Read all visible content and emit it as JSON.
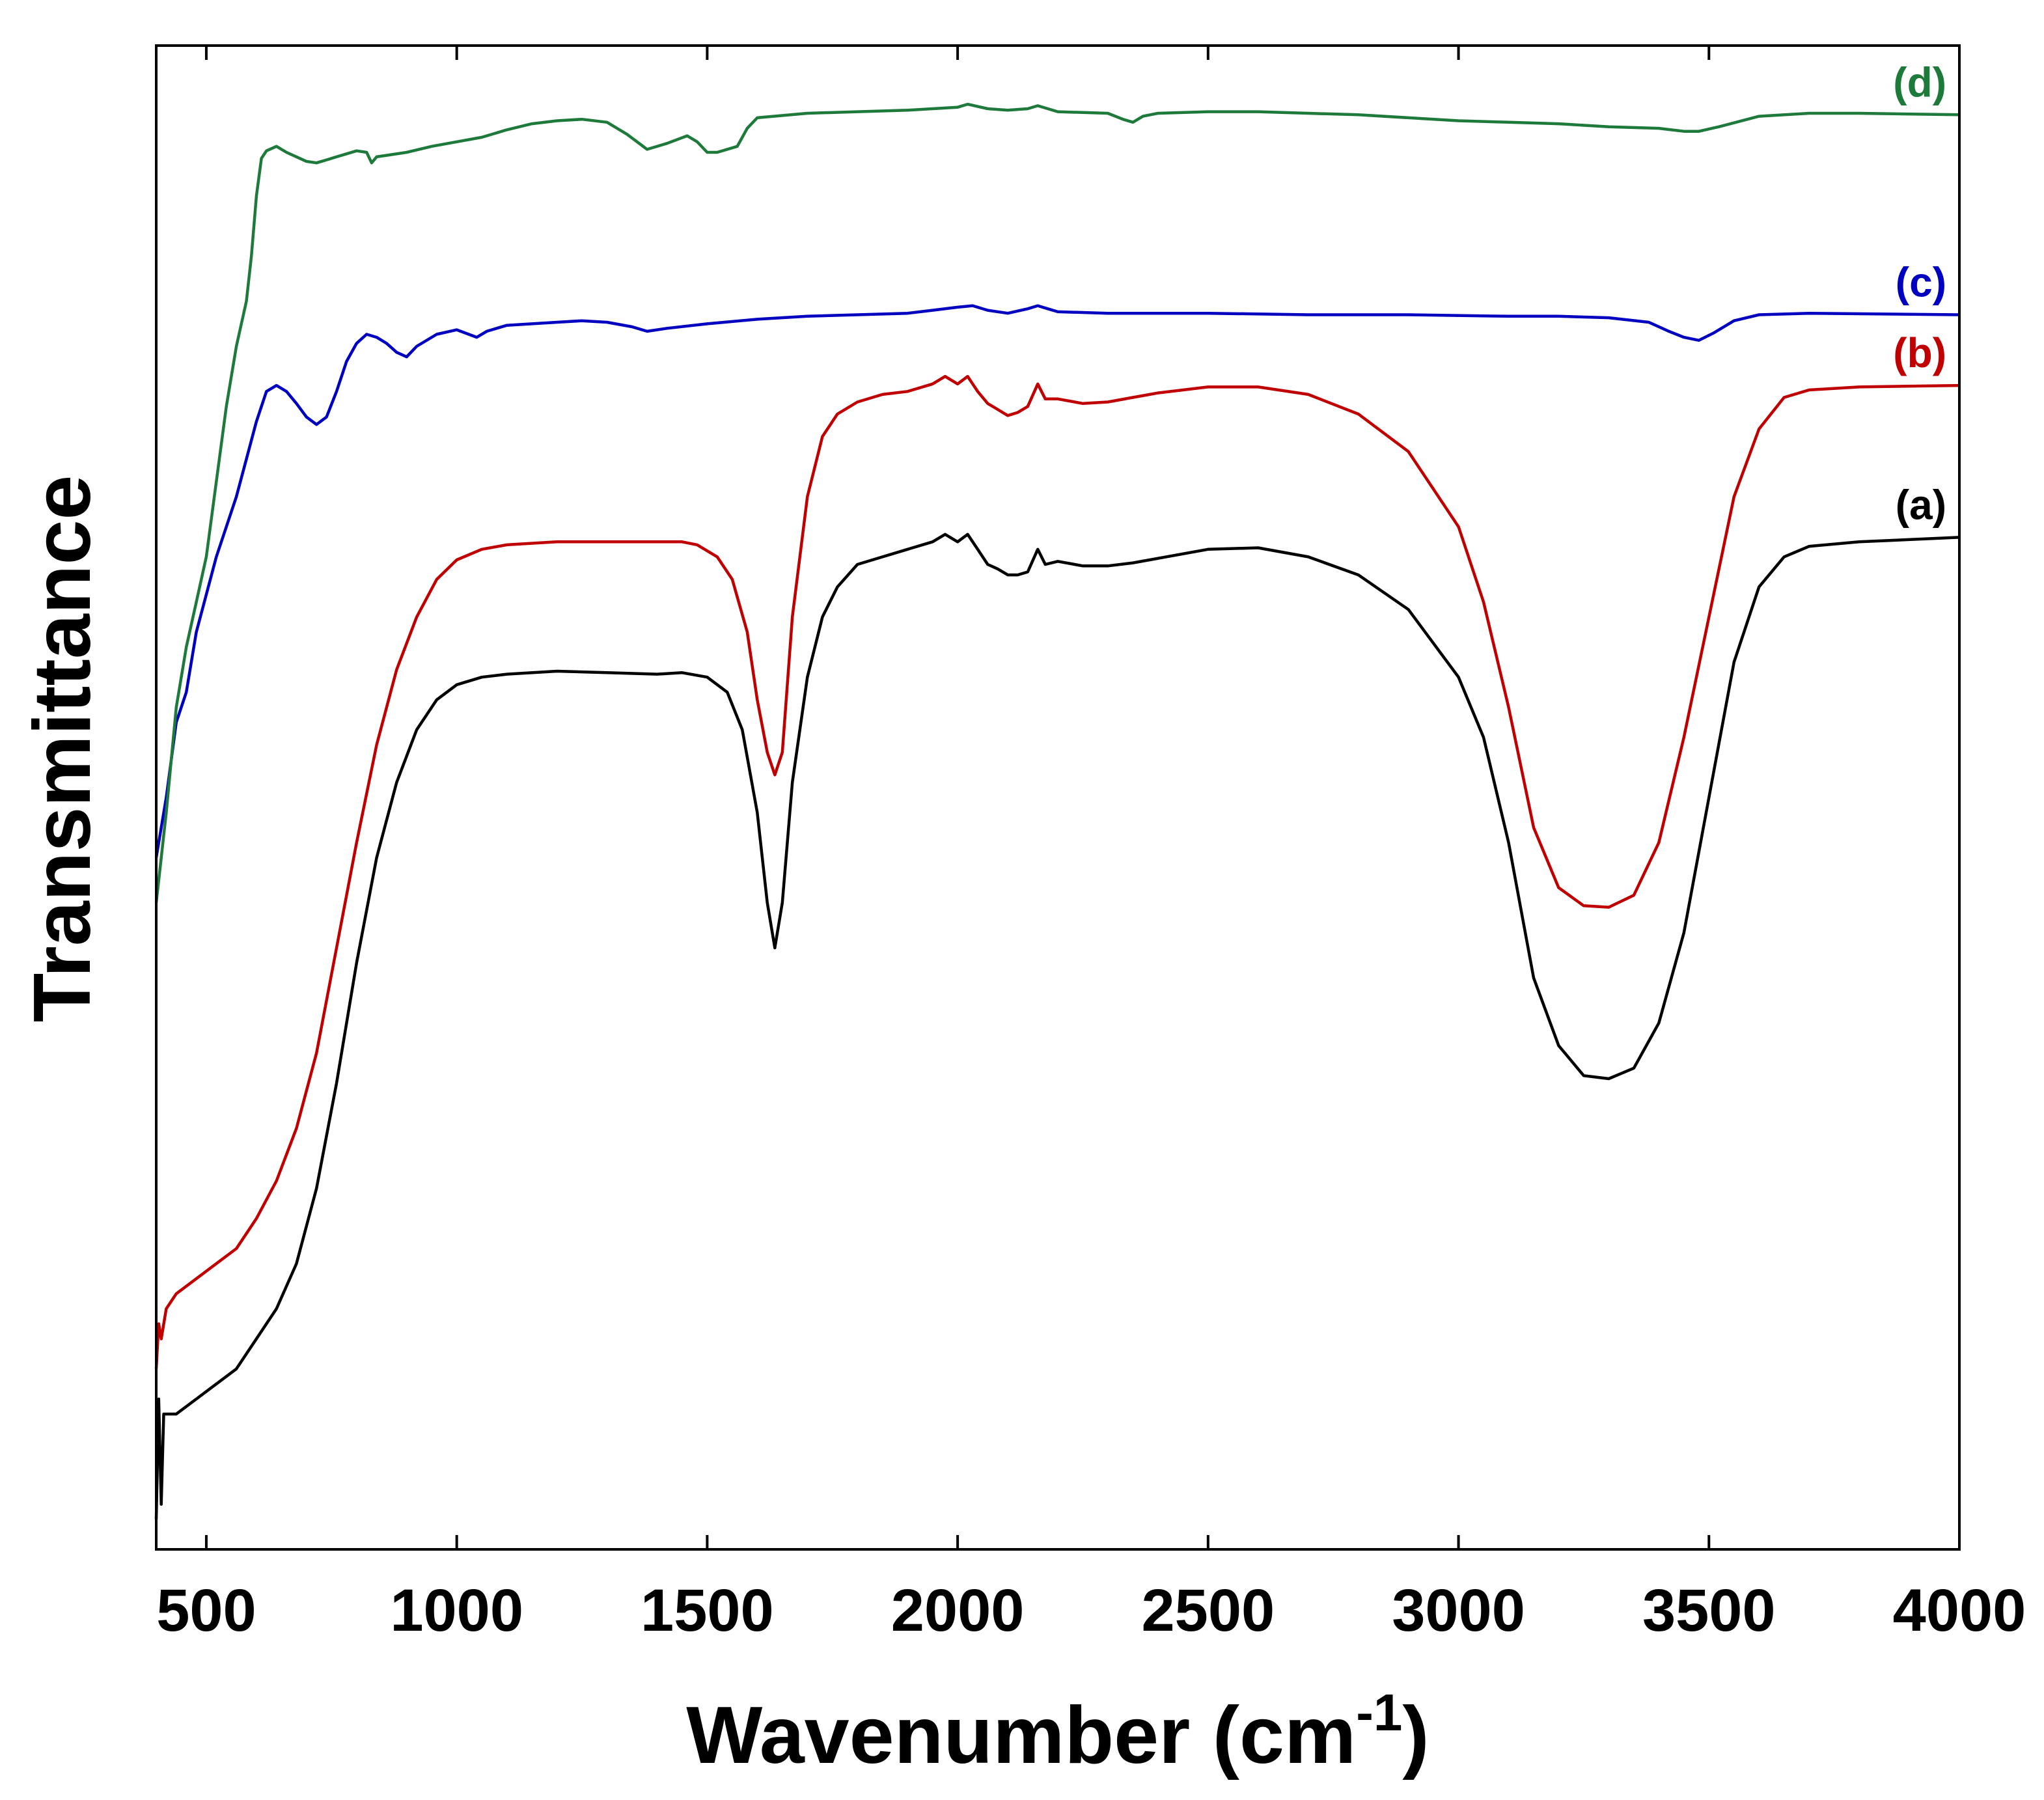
{
  "chart_data": {
    "type": "line",
    "title": "",
    "xlabel": "Wavenumber (cm",
    "xlabel_superscript": "-1",
    "xlabel_close": ")",
    "ylabel": "Transmittance",
    "xlim": [
      400,
      4000
    ],
    "ylim": [
      0,
      100
    ],
    "xticks": [
      500,
      1000,
      1500,
      2000,
      2500,
      3000,
      3500,
      4000
    ],
    "y_tick_labels": false,
    "grid": false,
    "legend": "inline labels at right end of each curve",
    "series": [
      {
        "name": "(a)",
        "color": "#000000",
        "points": [
          [
            400,
            2
          ],
          [
            405,
            10
          ],
          [
            410,
            3
          ],
          [
            415,
            9
          ],
          [
            420,
            9
          ],
          [
            440,
            9
          ],
          [
            480,
            10
          ],
          [
            520,
            11
          ],
          [
            560,
            12
          ],
          [
            600,
            14
          ],
          [
            640,
            16
          ],
          [
            680,
            19
          ],
          [
            720,
            24
          ],
          [
            760,
            31
          ],
          [
            800,
            39
          ],
          [
            840,
            46
          ],
          [
            880,
            51
          ],
          [
            920,
            54.5
          ],
          [
            960,
            56.5
          ],
          [
            1000,
            57.5
          ],
          [
            1050,
            58
          ],
          [
            1100,
            58.2
          ],
          [
            1200,
            58.4
          ],
          [
            1300,
            58.3
          ],
          [
            1400,
            58.2
          ],
          [
            1450,
            58.3
          ],
          [
            1500,
            58
          ],
          [
            1540,
            57
          ],
          [
            1570,
            54.5
          ],
          [
            1600,
            49
          ],
          [
            1620,
            43
          ],
          [
            1635,
            40
          ],
          [
            1650,
            43
          ],
          [
            1670,
            51
          ],
          [
            1700,
            58
          ],
          [
            1730,
            62
          ],
          [
            1760,
            64
          ],
          [
            1800,
            65.5
          ],
          [
            1850,
            66
          ],
          [
            1900,
            66.5
          ],
          [
            1950,
            67
          ],
          [
            1975,
            67.5
          ],
          [
            2000,
            67
          ],
          [
            2020,
            67.5
          ],
          [
            2040,
            66.5
          ],
          [
            2060,
            65.5
          ],
          [
            2080,
            65.2
          ],
          [
            2100,
            64.8
          ],
          [
            2120,
            64.8
          ],
          [
            2140,
            65
          ],
          [
            2160,
            66.5
          ],
          [
            2175,
            65.5
          ],
          [
            2200,
            65.7
          ],
          [
            2250,
            65.4
          ],
          [
            2300,
            65.4
          ],
          [
            2350,
            65.6
          ],
          [
            2400,
            65.9
          ],
          [
            2500,
            66.5
          ],
          [
            2600,
            66.6
          ],
          [
            2700,
            66
          ],
          [
            2800,
            64.8
          ],
          [
            2900,
            62.5
          ],
          [
            3000,
            58
          ],
          [
            3050,
            54
          ],
          [
            3100,
            47
          ],
          [
            3150,
            38
          ],
          [
            3200,
            33.5
          ],
          [
            3250,
            31.5
          ],
          [
            3300,
            31.3
          ],
          [
            3350,
            32
          ],
          [
            3400,
            35
          ],
          [
            3450,
            41
          ],
          [
            3500,
            50
          ],
          [
            3550,
            59
          ],
          [
            3600,
            64
          ],
          [
            3650,
            66
          ],
          [
            3700,
            66.7
          ],
          [
            3800,
            67
          ],
          [
            4000,
            67.3
          ]
        ]
      },
      {
        "name": "(b)",
        "color": "#C00000",
        "points": [
          [
            400,
            12
          ],
          [
            405,
            15
          ],
          [
            410,
            14
          ],
          [
            420,
            16
          ],
          [
            440,
            17
          ],
          [
            480,
            18
          ],
          [
            520,
            19
          ],
          [
            560,
            20
          ],
          [
            600,
            22
          ],
          [
            640,
            24.5
          ],
          [
            680,
            28
          ],
          [
            720,
            33
          ],
          [
            760,
            40
          ],
          [
            800,
            47
          ],
          [
            840,
            53.5
          ],
          [
            880,
            58.5
          ],
          [
            920,
            62
          ],
          [
            960,
            64.5
          ],
          [
            1000,
            65.8
          ],
          [
            1050,
            66.5
          ],
          [
            1100,
            66.8
          ],
          [
            1200,
            67
          ],
          [
            1300,
            67
          ],
          [
            1400,
            67
          ],
          [
            1450,
            67
          ],
          [
            1480,
            66.8
          ],
          [
            1520,
            66
          ],
          [
            1550,
            64.5
          ],
          [
            1580,
            61
          ],
          [
            1600,
            56.5
          ],
          [
            1620,
            53
          ],
          [
            1635,
            51.5
          ],
          [
            1650,
            53
          ],
          [
            1670,
            62
          ],
          [
            1700,
            70
          ],
          [
            1730,
            74
          ],
          [
            1760,
            75.5
          ],
          [
            1800,
            76.3
          ],
          [
            1850,
            76.8
          ],
          [
            1900,
            77
          ],
          [
            1950,
            77.5
          ],
          [
            1975,
            78
          ],
          [
            2000,
            77.5
          ],
          [
            2020,
            78
          ],
          [
            2040,
            77
          ],
          [
            2060,
            76.2
          ],
          [
            2080,
            75.8
          ],
          [
            2100,
            75.4
          ],
          [
            2120,
            75.6
          ],
          [
            2140,
            76
          ],
          [
            2160,
            77.5
          ],
          [
            2175,
            76.5
          ],
          [
            2200,
            76.5
          ],
          [
            2250,
            76.2
          ],
          [
            2300,
            76.3
          ],
          [
            2350,
            76.6
          ],
          [
            2400,
            76.9
          ],
          [
            2500,
            77.3
          ],
          [
            2600,
            77.3
          ],
          [
            2700,
            76.8
          ],
          [
            2800,
            75.5
          ],
          [
            2900,
            73
          ],
          [
            3000,
            68
          ],
          [
            3050,
            63
          ],
          [
            3100,
            56
          ],
          [
            3150,
            48
          ],
          [
            3200,
            44
          ],
          [
            3250,
            42.8
          ],
          [
            3300,
            42.7
          ],
          [
            3350,
            43.5
          ],
          [
            3400,
            47
          ],
          [
            3450,
            54
          ],
          [
            3500,
            62
          ],
          [
            3550,
            70
          ],
          [
            3600,
            74.5
          ],
          [
            3650,
            76.6
          ],
          [
            3700,
            77.1
          ],
          [
            3800,
            77.3
          ],
          [
            4000,
            77.4
          ]
        ]
      },
      {
        "name": "(c)",
        "color": "#0000C0",
        "points": [
          [
            400,
            46
          ],
          [
            420,
            50
          ],
          [
            440,
            55
          ],
          [
            460,
            57
          ],
          [
            480,
            61
          ],
          [
            520,
            66
          ],
          [
            560,
            70
          ],
          [
            600,
            75
          ],
          [
            620,
            77
          ],
          [
            640,
            77.4
          ],
          [
            660,
            77
          ],
          [
            680,
            76.2
          ],
          [
            700,
            75.3
          ],
          [
            720,
            74.8
          ],
          [
            740,
            75.3
          ],
          [
            760,
            77
          ],
          [
            780,
            79
          ],
          [
            800,
            80.2
          ],
          [
            820,
            80.8
          ],
          [
            840,
            80.6
          ],
          [
            860,
            80.2
          ],
          [
            880,
            79.6
          ],
          [
            900,
            79.3
          ],
          [
            920,
            80
          ],
          [
            960,
            80.8
          ],
          [
            1000,
            81.1
          ],
          [
            1040,
            80.6
          ],
          [
            1060,
            81
          ],
          [
            1100,
            81.4
          ],
          [
            1150,
            81.5
          ],
          [
            1200,
            81.6
          ],
          [
            1250,
            81.7
          ],
          [
            1300,
            81.6
          ],
          [
            1350,
            81.3
          ],
          [
            1380,
            81
          ],
          [
            1420,
            81.2
          ],
          [
            1500,
            81.5
          ],
          [
            1600,
            81.8
          ],
          [
            1700,
            82
          ],
          [
            1800,
            82.1
          ],
          [
            1900,
            82.2
          ],
          [
            1950,
            82.4
          ],
          [
            2000,
            82.6
          ],
          [
            2030,
            82.7
          ],
          [
            2060,
            82.4
          ],
          [
            2100,
            82.2
          ],
          [
            2140,
            82.5
          ],
          [
            2160,
            82.7
          ],
          [
            2180,
            82.5
          ],
          [
            2200,
            82.3
          ],
          [
            2300,
            82.2
          ],
          [
            2500,
            82.2
          ],
          [
            2700,
            82.1
          ],
          [
            2900,
            82.1
          ],
          [
            3100,
            82
          ],
          [
            3200,
            82
          ],
          [
            3300,
            81.9
          ],
          [
            3380,
            81.6
          ],
          [
            3420,
            81
          ],
          [
            3450,
            80.6
          ],
          [
            3480,
            80.4
          ],
          [
            3510,
            80.9
          ],
          [
            3550,
            81.7
          ],
          [
            3600,
            82.1
          ],
          [
            3700,
            82.2
          ],
          [
            4000,
            82.1
          ]
        ]
      },
      {
        "name": "(d)",
        "color": "#1E7A3A",
        "points": [
          [
            400,
            43
          ],
          [
            420,
            49
          ],
          [
            440,
            56
          ],
          [
            460,
            60
          ],
          [
            480,
            63
          ],
          [
            500,
            66
          ],
          [
            520,
            71
          ],
          [
            540,
            76
          ],
          [
            560,
            80
          ],
          [
            580,
            83
          ],
          [
            590,
            86
          ],
          [
            600,
            90
          ],
          [
            610,
            92.5
          ],
          [
            620,
            93
          ],
          [
            640,
            93.3
          ],
          [
            660,
            92.9
          ],
          [
            680,
            92.6
          ],
          [
            700,
            92.3
          ],
          [
            720,
            92.2
          ],
          [
            740,
            92.4
          ],
          [
            760,
            92.6
          ],
          [
            780,
            92.8
          ],
          [
            800,
            93
          ],
          [
            820,
            92.9
          ],
          [
            830,
            92.2
          ],
          [
            840,
            92.6
          ],
          [
            860,
            92.7
          ],
          [
            900,
            92.9
          ],
          [
            950,
            93.3
          ],
          [
            1000,
            93.6
          ],
          [
            1050,
            93.9
          ],
          [
            1100,
            94.4
          ],
          [
            1150,
            94.8
          ],
          [
            1200,
            95
          ],
          [
            1250,
            95.1
          ],
          [
            1300,
            94.9
          ],
          [
            1340,
            94.1
          ],
          [
            1380,
            93.1
          ],
          [
            1420,
            93.5
          ],
          [
            1460,
            94
          ],
          [
            1480,
            93.6
          ],
          [
            1500,
            92.9
          ],
          [
            1520,
            92.9
          ],
          [
            1560,
            93.3
          ],
          [
            1580,
            94.5
          ],
          [
            1600,
            95.2
          ],
          [
            1700,
            95.5
          ],
          [
            1800,
            95.6
          ],
          [
            1900,
            95.7
          ],
          [
            1950,
            95.8
          ],
          [
            2000,
            95.9
          ],
          [
            2020,
            96.1
          ],
          [
            2060,
            95.8
          ],
          [
            2100,
            95.7
          ],
          [
            2140,
            95.8
          ],
          [
            2160,
            96
          ],
          [
            2180,
            95.8
          ],
          [
            2200,
            95.6
          ],
          [
            2300,
            95.5
          ],
          [
            2330,
            95.1
          ],
          [
            2350,
            94.9
          ],
          [
            2370,
            95.3
          ],
          [
            2400,
            95.5
          ],
          [
            2500,
            95.6
          ],
          [
            2600,
            95.6
          ],
          [
            2700,
            95.5
          ],
          [
            2800,
            95.4
          ],
          [
            2900,
            95.2
          ],
          [
            3000,
            95
          ],
          [
            3100,
            94.9
          ],
          [
            3200,
            94.8
          ],
          [
            3300,
            94.6
          ],
          [
            3400,
            94.5
          ],
          [
            3450,
            94.3
          ],
          [
            3480,
            94.3
          ],
          [
            3520,
            94.6
          ],
          [
            3600,
            95.3
          ],
          [
            3700,
            95.5
          ],
          [
            3800,
            95.5
          ],
          [
            4000,
            95.4
          ]
        ]
      }
    ]
  }
}
